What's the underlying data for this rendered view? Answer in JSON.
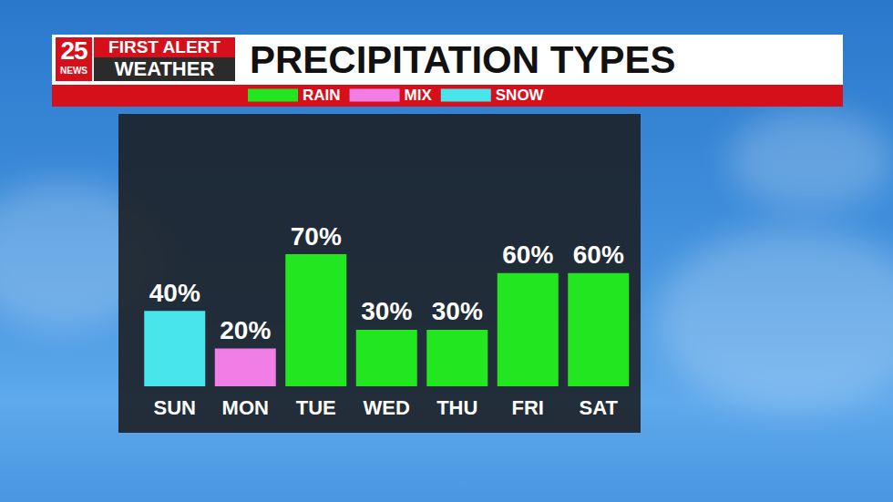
{
  "chart_data": {
    "type": "bar",
    "title": "PRECIPITATION TYPES",
    "annotations": [
      "25",
      "NEWS",
      "FIRST ALERT",
      "WEATHER"
    ],
    "categories": [
      "SUN",
      "MON",
      "TUE",
      "WED",
      "THU",
      "FRI",
      "SAT"
    ],
    "series": [
      {
        "name": "RAIN",
        "color": "#22e620",
        "values": [
          null,
          null,
          70,
          30,
          30,
          60,
          60
        ],
        "value_labels": [
          null,
          null,
          "70%",
          "30%",
          "30%",
          "60%",
          "60%"
        ]
      },
      {
        "name": "MIX",
        "color": "#f07ee6",
        "values": [
          null,
          20,
          null,
          null,
          null,
          null,
          null
        ],
        "value_labels": [
          null,
          "20%",
          null,
          null,
          null,
          null,
          null
        ]
      },
      {
        "name": "SNOW",
        "color": "#48e6ec",
        "values": [
          40,
          null,
          null,
          null,
          null,
          null,
          null
        ],
        "value_labels": [
          "40%",
          null,
          null,
          null,
          null,
          null,
          null
        ]
      }
    ],
    "ylim": [
      0,
      100
    ],
    "grid": false,
    "legend": "top",
    "data_labels": true,
    "tick_labels": "x"
  }
}
